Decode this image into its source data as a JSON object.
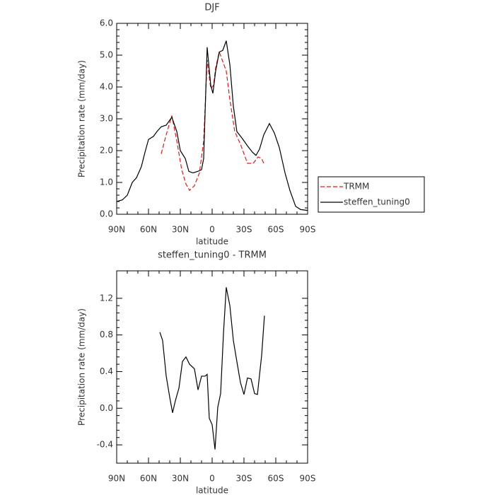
{
  "chart_data": [
    {
      "type": "line",
      "title": "DJF",
      "x_label": "latitude",
      "y_label": "Precipitation rate (mm/day)",
      "xlim": [
        90,
        -90
      ],
      "xticks": [
        {
          "value": 90,
          "label": "90N"
        },
        {
          "value": 60,
          "label": "60N"
        },
        {
          "value": 30,
          "label": "30N"
        },
        0,
        {
          "value": -30,
          "label": "30S"
        },
        {
          "value": -60,
          "label": "60S"
        },
        {
          "value": -90,
          "label": "90S"
        }
      ],
      "ylim": [
        0,
        6
      ],
      "yticks": [
        {
          "value": 0,
          "label": "0.0"
        },
        {
          "value": 1,
          "label": "1.0"
        },
        {
          "value": 2,
          "label": "2.0"
        },
        {
          "value": 3,
          "label": "3.0"
        },
        {
          "value": 4,
          "label": "4.0"
        },
        {
          "value": 5,
          "label": "5.0"
        },
        {
          "value": 6,
          "label": "6.0"
        }
      ],
      "legend": "right",
      "series": [
        {
          "name": "TRMM",
          "color": "#e41a1c",
          "style": "dashed",
          "x": [
            48,
            43.3,
            38,
            33.3,
            28.7,
            24.7,
            21.3,
            16.7,
            12,
            8,
            4.7,
            1.3,
            -1.3,
            -3.3,
            -6.7,
            -10,
            -13.3,
            -16.7,
            -21.3,
            -26.7,
            -33.3,
            -38.7,
            -43.3,
            -46.7,
            -49.3
          ],
          "values": [
            1.9,
            2.5,
            3.1,
            2.3,
            1.4,
            0.95,
            0.75,
            0.9,
            1.3,
            2.3,
            4.85,
            3.95,
            4.05,
            4.6,
            5.1,
            4.8,
            4.5,
            3.6,
            2.6,
            2.2,
            1.6,
            1.6,
            1.8,
            1.75,
            1.55
          ]
        },
        {
          "name": "steffen_tuning0",
          "color": "#000000",
          "style": "solid",
          "x": [
            90,
            84.7,
            80,
            75.3,
            71.3,
            66.7,
            63.3,
            60,
            55.3,
            52,
            48,
            43.3,
            38,
            33.3,
            30,
            25.3,
            22,
            18,
            13.3,
            10,
            8,
            4.7,
            1.3,
            -0.7,
            -3.3,
            -6.7,
            -10,
            -13.3,
            -16.7,
            -20,
            -23.3,
            -28,
            -33.3,
            -38,
            -41.3,
            -44.7,
            -48.7,
            -54,
            -58.7,
            -63.3,
            -68.7,
            -73.3,
            -78.7,
            -83.3,
            -90
          ],
          "values": [
            0.4,
            0.45,
            0.6,
            1.0,
            1.15,
            1.5,
            1.95,
            2.35,
            2.45,
            2.6,
            2.75,
            2.8,
            3.05,
            2.6,
            2.0,
            1.75,
            1.35,
            1.3,
            1.35,
            1.4,
            1.75,
            5.25,
            4.05,
            3.8,
            4.5,
            5.1,
            5.15,
            5.45,
            4.7,
            3.4,
            2.6,
            2.4,
            2.15,
            1.95,
            1.85,
            2.05,
            2.5,
            2.85,
            2.55,
            2.1,
            1.3,
            0.75,
            0.25,
            0.15,
            0.12
          ]
        }
      ]
    },
    {
      "type": "line",
      "title": "steffen_tuning0 - TRMM",
      "x_label": "latitude",
      "y_label": "Precipitation rate (mm/day)",
      "xlim": [
        90,
        -90
      ],
      "xticks": [
        {
          "value": 90,
          "label": "90N"
        },
        {
          "value": 60,
          "label": "60N"
        },
        {
          "value": 30,
          "label": "30N"
        },
        0,
        {
          "value": -30,
          "label": "30S"
        },
        {
          "value": -60,
          "label": "60S"
        },
        {
          "value": -90,
          "label": "90S"
        }
      ],
      "ylim": [
        -0.6,
        1.5
      ],
      "yticks": [
        -0.4,
        {
          "value": 0,
          "label": "0.0"
        },
        0.4,
        0.8,
        1.2
      ],
      "series": [
        {
          "color": "#000000",
          "style": "solid",
          "x": [
            49.3,
            46.7,
            43.3,
            40,
            37.3,
            34.7,
            31.3,
            28,
            24.7,
            21.3,
            16.7,
            13.3,
            10,
            6.7,
            4.7,
            2.7,
            0,
            -2.7,
            -5.3,
            -8,
            -10.7,
            -13.3,
            -16.7,
            -20,
            -23.3,
            -26.7,
            -30,
            -33.3,
            -36.7,
            -40,
            -42.7,
            -46.7,
            -49.3
          ],
          "values": [
            0.83,
            0.74,
            0.35,
            0.12,
            -0.05,
            0.08,
            0.22,
            0.51,
            0.56,
            0.48,
            0.43,
            0.2,
            0.35,
            0.35,
            0.37,
            -0.11,
            -0.18,
            -0.45,
            0.01,
            0.16,
            0.82,
            1.32,
            1.12,
            0.74,
            0.51,
            0.28,
            0.15,
            0.33,
            0.32,
            0.16,
            0.15,
            0.58,
            1.01
          ]
        }
      ]
    }
  ]
}
